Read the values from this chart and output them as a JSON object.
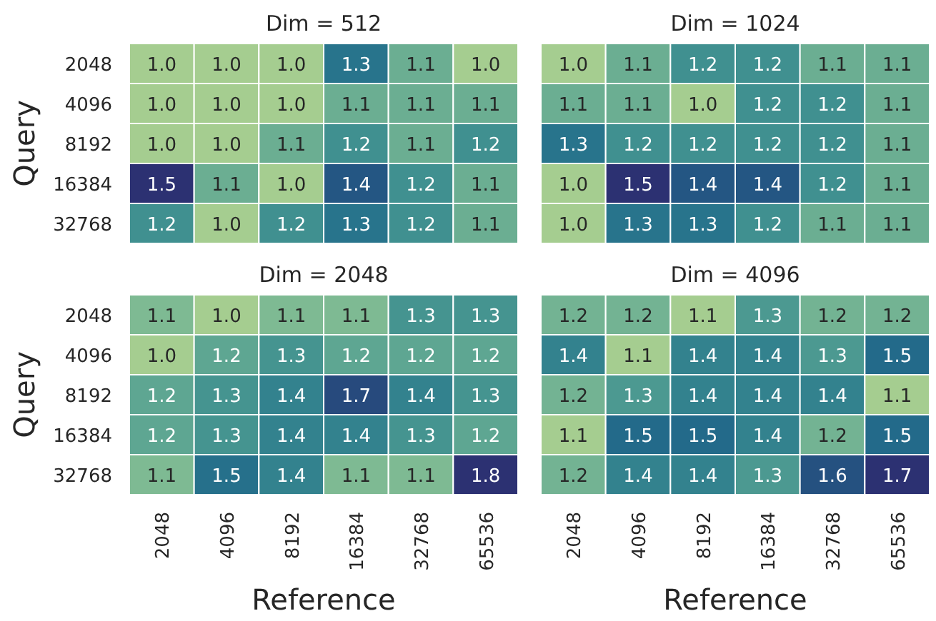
{
  "chart_data": [
    {
      "type": "heatmap",
      "title": "Dim = 512",
      "ylabel": "Query",
      "categories": [
        "2048",
        "4096",
        "8192",
        "16384",
        "32768",
        "65536"
      ],
      "y_categories": [
        "2048",
        "4096",
        "8192",
        "16384",
        "32768"
      ],
      "tick_labels": "y",
      "cells": [
        [
          1.0,
          1.0,
          1.0,
          1.3,
          1.1,
          1.0
        ],
        [
          1.0,
          1.0,
          1.0,
          1.1,
          1.1,
          1.1
        ],
        [
          1.0,
          1.0,
          1.1,
          1.2,
          1.1,
          1.2
        ],
        [
          1.5,
          1.1,
          1.0,
          1.4,
          1.2,
          1.1
        ],
        [
          1.2,
          1.0,
          1.2,
          1.3,
          1.2,
          1.1
        ]
      ],
      "cell_labels": [
        [
          "1.0",
          "1.0",
          "1.0",
          "1.3",
          "1.1",
          "1.0"
        ],
        [
          "1.0",
          "1.0",
          "1.0",
          "1.1",
          "1.1",
          "1.1"
        ],
        [
          "1.0",
          "1.0",
          "1.1",
          "1.2",
          "1.1",
          "1.2"
        ],
        [
          "1.5",
          "1.1",
          "1.0",
          "1.4",
          "1.2",
          "1.1"
        ],
        [
          "1.2",
          "1.0",
          "1.2",
          "1.3",
          "1.2",
          "1.1"
        ]
      ]
    },
    {
      "type": "heatmap",
      "title": "Dim = 1024",
      "categories": [
        "2048",
        "4096",
        "8192",
        "16384",
        "32768",
        "65536"
      ],
      "y_categories": [
        "2048",
        "4096",
        "8192",
        "16384",
        "32768"
      ],
      "tick_labels": false,
      "cells": [
        [
          1.0,
          1.1,
          1.2,
          1.2,
          1.1,
          1.1
        ],
        [
          1.1,
          1.1,
          1.0,
          1.2,
          1.2,
          1.1
        ],
        [
          1.3,
          1.2,
          1.2,
          1.2,
          1.2,
          1.1
        ],
        [
          1.0,
          1.5,
          1.4,
          1.4,
          1.2,
          1.1
        ],
        [
          1.0,
          1.3,
          1.3,
          1.2,
          1.1,
          1.1
        ]
      ],
      "cell_labels": [
        [
          "1.0",
          "1.1",
          "1.2",
          "1.2",
          "1.1",
          "1.1"
        ],
        [
          "1.1",
          "1.1",
          "1.0",
          "1.2",
          "1.2",
          "1.1"
        ],
        [
          "1.3",
          "1.2",
          "1.2",
          "1.2",
          "1.2",
          "1.1"
        ],
        [
          "1.0",
          "1.5",
          "1.4",
          "1.4",
          "1.2",
          "1.1"
        ],
        [
          "1.0",
          "1.3",
          "1.3",
          "1.2",
          "1.1",
          "1.1"
        ]
      ]
    },
    {
      "type": "heatmap",
      "title": "Dim = 2048",
      "xlabel": "Reference",
      "ylabel": "Query",
      "categories": [
        "2048",
        "4096",
        "8192",
        "16384",
        "32768",
        "65536"
      ],
      "y_categories": [
        "2048",
        "4096",
        "8192",
        "16384",
        "32768"
      ],
      "cells": [
        [
          1.1,
          1.0,
          1.1,
          1.1,
          1.3,
          1.3
        ],
        [
          1.0,
          1.2,
          1.3,
          1.2,
          1.2,
          1.2
        ],
        [
          1.2,
          1.3,
          1.4,
          1.7,
          1.4,
          1.3
        ],
        [
          1.2,
          1.3,
          1.4,
          1.4,
          1.3,
          1.2
        ],
        [
          1.1,
          1.5,
          1.4,
          1.1,
          1.1,
          1.8
        ]
      ],
      "cell_labels": [
        [
          "1.1",
          "1.0",
          "1.1",
          "1.1",
          "1.3",
          "1.3"
        ],
        [
          "1.0",
          "1.2",
          "1.3",
          "1.2",
          "1.2",
          "1.2"
        ],
        [
          "1.2",
          "1.3",
          "1.4",
          "1.7",
          "1.4",
          "1.3"
        ],
        [
          "1.2",
          "1.3",
          "1.4",
          "1.4",
          "1.3",
          "1.2"
        ],
        [
          "1.1",
          "1.5",
          "1.4",
          "1.1",
          "1.1",
          "1.8"
        ]
      ]
    },
    {
      "type": "heatmap",
      "title": "Dim = 4096",
      "xlabel": "Reference",
      "categories": [
        "2048",
        "4096",
        "8192",
        "16384",
        "32768",
        "65536"
      ],
      "y_categories": [
        "2048",
        "4096",
        "8192",
        "16384",
        "32768"
      ],
      "tick_labels": "x",
      "cells": [
        [
          1.2,
          1.2,
          1.1,
          1.3,
          1.2,
          1.2
        ],
        [
          1.4,
          1.1,
          1.4,
          1.4,
          1.3,
          1.5
        ],
        [
          1.2,
          1.3,
          1.4,
          1.4,
          1.4,
          1.1
        ],
        [
          1.1,
          1.5,
          1.5,
          1.4,
          1.2,
          1.5
        ],
        [
          1.2,
          1.4,
          1.4,
          1.3,
          1.6,
          1.7
        ]
      ],
      "cell_labels": [
        [
          "1.2",
          "1.2",
          "1.1",
          "1.3",
          "1.2",
          "1.2"
        ],
        [
          "1.4",
          "1.1",
          "1.4",
          "1.4",
          "1.3",
          "1.5"
        ],
        [
          "1.2",
          "1.3",
          "1.4",
          "1.4",
          "1.4",
          "1.1"
        ],
        [
          "1.1",
          "1.5",
          "1.5",
          "1.4",
          "1.2",
          "1.5"
        ],
        [
          "1.2",
          "1.4",
          "1.4",
          "1.3",
          "1.6",
          "1.7"
        ]
      ]
    }
  ]
}
